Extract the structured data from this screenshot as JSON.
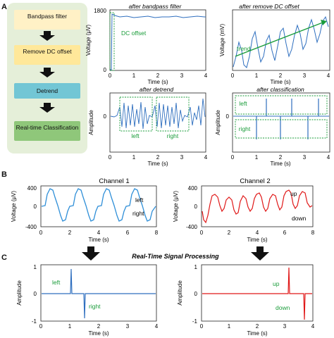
{
  "panels": {
    "a": "A",
    "b": "B",
    "c": "C"
  },
  "flow": {
    "steps": [
      {
        "label": "Bandpass filter",
        "fill": "#fff1c6"
      },
      {
        "label": "Remove DC offset",
        "fill": "#ffe89a"
      },
      {
        "label": "Detrend",
        "fill": "#72c6d5"
      },
      {
        "label": "Real-time Classification",
        "fill": "#8fc77a"
      }
    ],
    "background": "#e5efd9"
  },
  "colors": {
    "blue": "#2f6fbf",
    "red": "#e01818",
    "green": "#1a9c3a"
  },
  "panelA": {
    "bandpass": {
      "title": "after bandpass filter",
      "ylabel": "Voltage (μV)",
      "xlabel": "Time (s)",
      "yticks": [
        "1800",
        "0"
      ],
      "xticks": [
        "0",
        "1",
        "2",
        "3",
        "4"
      ],
      "annotation": "DC offset"
    },
    "removedc": {
      "title": "after remove DC offset",
      "ylabel": "Voltage (mV)",
      "xlabel": "Time (s)",
      "xticks": [
        "0",
        "1",
        "2",
        "3",
        "4"
      ],
      "annotation": "trend"
    },
    "detrend": {
      "title": "after detrend",
      "ylabel": "Amplitude",
      "xlabel": "Time (s)",
      "yticks": [
        "0"
      ],
      "xticks": [
        "0",
        "1",
        "2",
        "3",
        "4"
      ],
      "box_left": "left",
      "box_right": "right"
    },
    "classification": {
      "title": "after classification",
      "ylabel": "Amplitude",
      "xlabel": "Time (s)",
      "yticks": [
        "0"
      ],
      "xticks": [
        "0",
        "1",
        "2",
        "3",
        "4"
      ],
      "box_left": "left",
      "box_right": "right"
    }
  },
  "panelB": {
    "ch1": {
      "title": "Channel 1",
      "ylabel": "Voltage (μV)",
      "xlabel": "Time (s)",
      "yticks": [
        "400",
        "0",
        "-400"
      ],
      "xticks": [
        "0",
        "2",
        "4",
        "6",
        "8"
      ],
      "label_top": "left",
      "label_bottom": "right"
    },
    "ch2": {
      "title": "Channel 2",
      "ylabel": "Voltage (μV)",
      "xlabel": "Time (s)",
      "yticks": [
        "400",
        "0",
        "-400"
      ],
      "xticks": [
        "0",
        "2",
        "4",
        "6",
        "8"
      ],
      "label_top": "up",
      "label_bottom": "down"
    }
  },
  "processing_label": "Real-Time Signal Processing",
  "panelC": {
    "left": {
      "ylabel": "Amplitude",
      "xlabel": "Time (s)",
      "yticks": [
        "1",
        "0",
        "-1"
      ],
      "xticks": [
        "0",
        "1",
        "2",
        "3",
        "4"
      ],
      "label_pos": "left",
      "label_neg": "right"
    },
    "right": {
      "ylabel": "Amplitude",
      "xlabel": "Time (s)",
      "yticks": [
        "1",
        "0",
        "-1"
      ],
      "xticks": [
        "0",
        "1",
        "2",
        "3",
        "4"
      ],
      "label_pos": "up",
      "label_neg": "down"
    }
  }
}
